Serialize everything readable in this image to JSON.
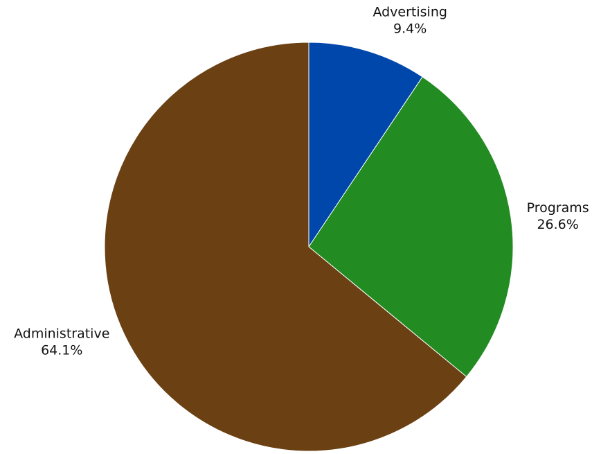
{
  "chart_data": {
    "type": "pie",
    "title": "",
    "start": "top",
    "direction": "clockwise",
    "slices": [
      {
        "label": "Advertising",
        "value": 9.4,
        "value_label": "9.4%",
        "color": "#0047ab"
      },
      {
        "label": "Programs",
        "value": 26.6,
        "value_label": "26.6%",
        "color": "#228b22"
      },
      {
        "label": "Administrative",
        "value": 64.1,
        "value_label": "64.1%",
        "color": "#6b4013"
      }
    ],
    "slice_border_color": "#ffffff"
  }
}
